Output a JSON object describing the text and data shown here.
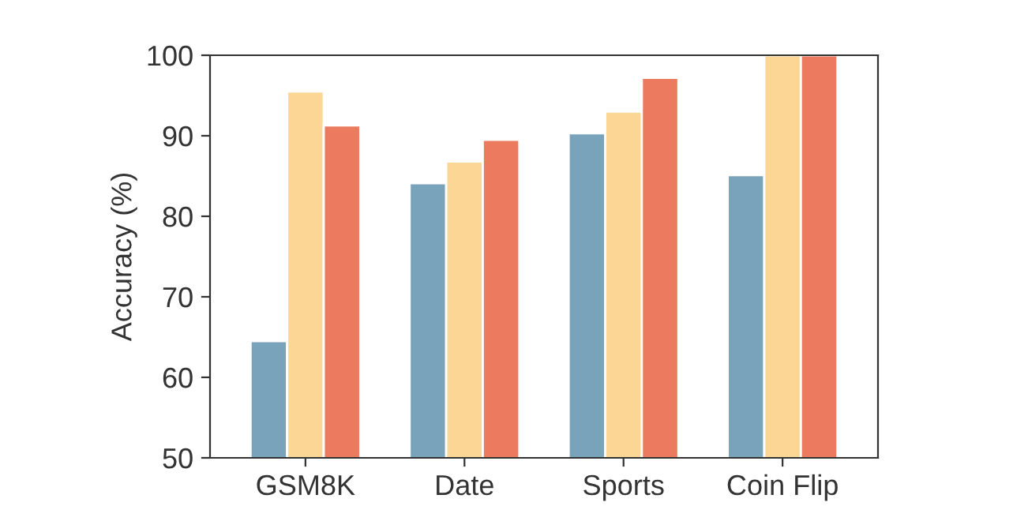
{
  "chart_data": {
    "type": "bar",
    "ylabel": "Accuracy (%)",
    "categories": [
      "GSM8K",
      "Date",
      "Sports",
      "Coin Flip"
    ],
    "series": [
      {
        "color": "#79a2bb",
        "values": [
          64.5,
          84.1,
          90.3,
          85.1
        ]
      },
      {
        "color": "#fcd694",
        "values": [
          95.5,
          86.8,
          93.0,
          100
        ]
      },
      {
        "color": "#ec7a5e",
        "values": [
          91.3,
          89.5,
          97.2,
          100
        ]
      }
    ],
    "ylim": [
      50,
      100
    ],
    "yticks": [
      50,
      60,
      70,
      80,
      90,
      100
    ],
    "grid": false
  }
}
